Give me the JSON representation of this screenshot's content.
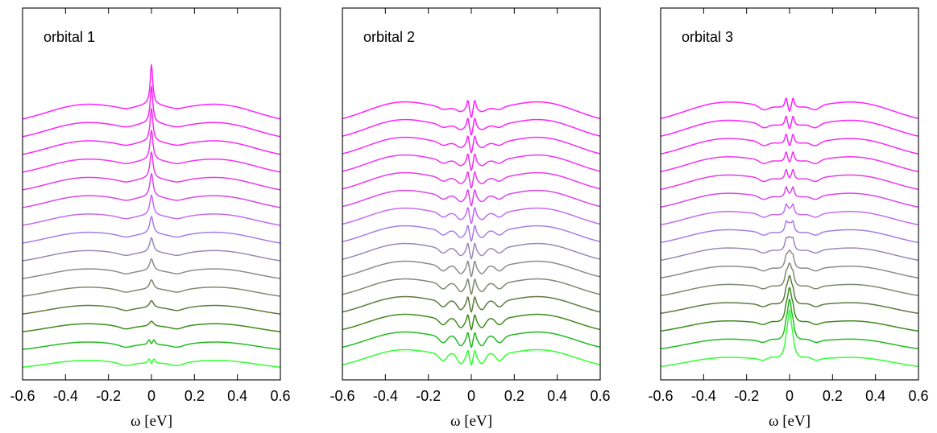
{
  "chart_data": [
    {
      "type": "line",
      "title": "orbital 1",
      "xlabel": "ω [eV]",
      "ylabel": "",
      "xlim": [
        -0.6,
        0.6
      ],
      "xticks": [
        "-0.6",
        "-0.4",
        "-0.2",
        "0",
        "0.2",
        "0.4",
        "0.6"
      ],
      "yticks_shown": false,
      "n_curves": 15,
      "vertical_offset_stack": true,
      "shape": "central quasiparticle peak at ω=0 with broad shoulders near ±0.3; peak sharpens toward top curves, bottom curve shows small dip at ω=0"
    },
    {
      "type": "line",
      "title": "orbital 2",
      "xlabel": "ω [eV]",
      "ylabel": "",
      "xlim": [
        -0.6,
        0.6
      ],
      "xticks": [
        "-0.6",
        "-0.4",
        "-0.2",
        "0",
        "0.2",
        "0.4",
        "0.6"
      ],
      "yticks_shown": false,
      "n_curves": 15,
      "vertical_offset_stack": true,
      "shape": "pseudogap: split twin peaks at ω≈±0.015 with dip at ω=0, broad Hubbard-like humps near ±0.33; gap features grow toward bottom curves"
    },
    {
      "type": "line",
      "title": "orbital 3",
      "xlabel": "ω [eV]",
      "ylabel": "",
      "xlim": [
        -0.6,
        0.6
      ],
      "xticks": [
        "-0.6",
        "-0.4",
        "-0.2",
        "0",
        "0.2",
        "0.4",
        "0.6"
      ],
      "yticks_shown": false,
      "n_curves": 15,
      "vertical_offset_stack": true,
      "shape": "split twin peaks near ω=0 in upper curves, turning into a single strong central peak in bottom curves"
    }
  ],
  "colors": {
    "top_curve": "#33ff33",
    "middle_curve": "#888888",
    "bottom_curve": "#ff22ff",
    "gradient": [
      "#33ff33",
      "#22bb22",
      "#3f8a1e",
      "#5e7b3e",
      "#7e8a70",
      "#8c8c8c",
      "#9a88b8",
      "#a77de6",
      "#c46cf0",
      "#dd44ee",
      "#e93be9",
      "#f233f2",
      "#f82bf8",
      "#fc24fc",
      "#ff22ff"
    ]
  }
}
